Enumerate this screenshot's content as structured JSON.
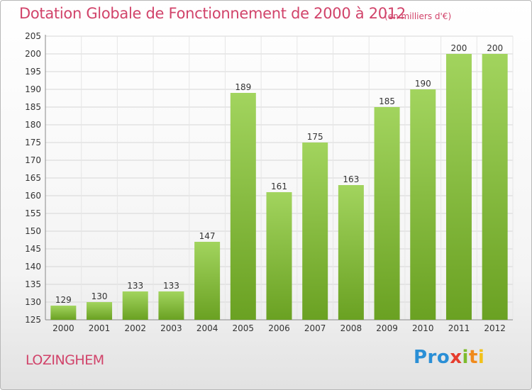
{
  "chart_data": {
    "type": "bar",
    "title": "Dotation Globale de Fonctionnement de 2000 à 2012",
    "subtitle": "(en milliers d'€)",
    "categories": [
      "2000",
      "2001",
      "2002",
      "2003",
      "2004",
      "2005",
      "2006",
      "2007",
      "2008",
      "2009",
      "2010",
      "2011",
      "2012"
    ],
    "values": [
      129,
      130,
      133,
      133,
      147,
      189,
      161,
      175,
      163,
      185,
      190,
      200,
      200
    ],
    "ylim": [
      125,
      205
    ],
    "yticks": [
      125,
      130,
      135,
      140,
      145,
      150,
      155,
      160,
      165,
      170,
      175,
      180,
      185,
      190,
      195,
      200,
      205
    ],
    "grid": true,
    "colors": {
      "bar_light": "#a2d45e",
      "bar_dark": "#6aa122",
      "title": "#d1436a"
    }
  },
  "footer": {
    "commune": "LOZINGHEM",
    "logo_parts": [
      "Pro",
      "x",
      "i",
      "t",
      "i"
    ]
  }
}
